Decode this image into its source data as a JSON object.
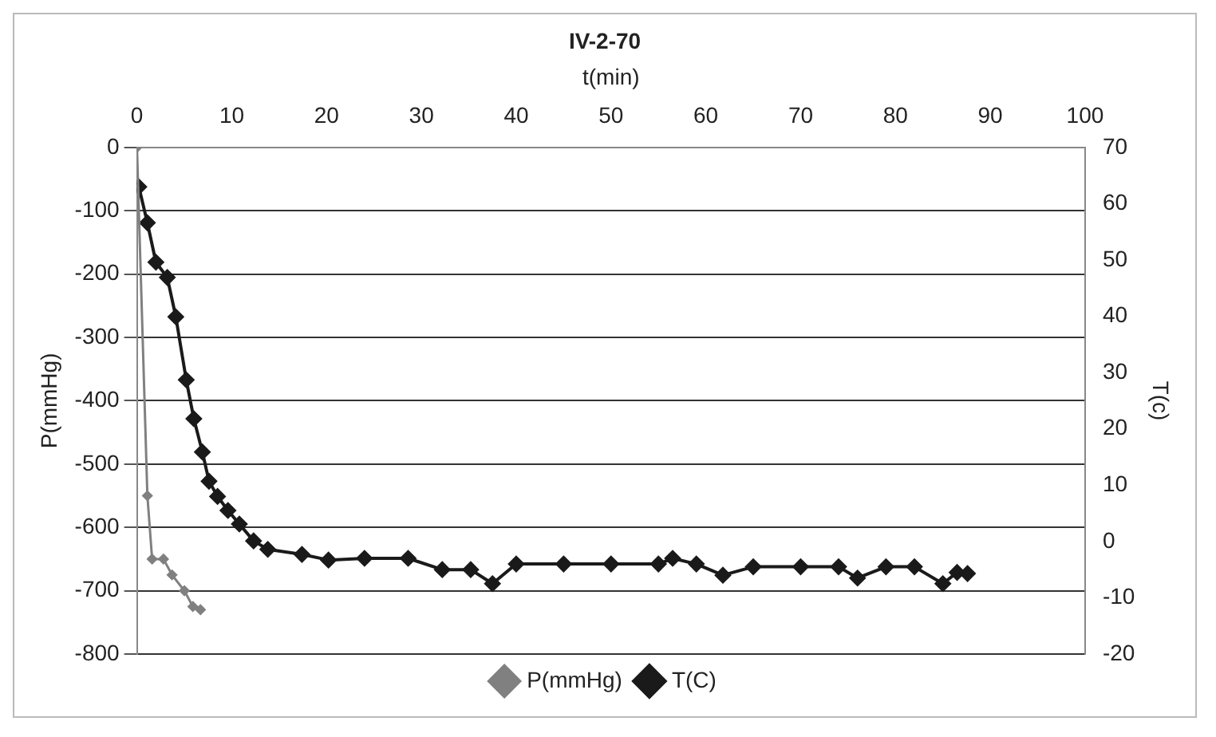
{
  "chart_data": {
    "type": "line",
    "title": "IV-2-70",
    "xlabel": "t(min)",
    "ylabel": "P(mmHg)",
    "y2label": "T(c)",
    "xlim": [
      0,
      100
    ],
    "xticks": [
      0,
      10,
      20,
      30,
      40,
      50,
      60,
      70,
      80,
      90,
      100
    ],
    "ylim": [
      -800,
      0
    ],
    "yticks": [
      -800,
      -700,
      -600,
      -500,
      -400,
      -300,
      -200,
      -100,
      0
    ],
    "y2lim": [
      -20,
      70
    ],
    "y2ticks": [
      -20,
      -10,
      0,
      10,
      20,
      30,
      40,
      50,
      60,
      70
    ],
    "grid": "y",
    "legend": "bottom",
    "marker": "diamond",
    "line_style": "solid",
    "series": [
      {
        "name": "P(mmHg)",
        "color": "#808080",
        "x": [
          0,
          1.1,
          1.6,
          2.8,
          3.7,
          5,
          5.9,
          6.7
        ],
        "values": [
          0,
          -550,
          -650,
          -650,
          -675,
          -700,
          -725,
          -730
        ]
      },
      {
        "name": "T(C)",
        "color": "#1a1a1a",
        "axis": "y2",
        "x": [
          0.2,
          1.1,
          2,
          3.2,
          4.1,
          5.2,
          6,
          6.9,
          7.6,
          8.5,
          9.6,
          10.8,
          12.3,
          13.8,
          17.4,
          20.2,
          24,
          28.6,
          32.2,
          35.2,
          37.5,
          40,
          45,
          50,
          55,
          56.5,
          59,
          61.8,
          65,
          70,
          74,
          76,
          79,
          82,
          85,
          86.5,
          87.6
        ],
        "values": [
          63,
          56.6,
          49.6,
          46.9,
          39.9,
          28.7,
          21.8,
          15.9,
          10.7,
          8,
          5.5,
          3.1,
          0.1,
          -1.4,
          -2.3,
          -3.3,
          -3,
          -3,
          -5,
          -5,
          -7.5,
          -4,
          -4,
          -4,
          -4,
          -3,
          -4,
          -6,
          -4.5,
          -4.5,
          -4.5,
          -6.5,
          -4.5,
          -4.5,
          -7.5,
          -5.5,
          -5.7
        ]
      }
    ]
  }
}
